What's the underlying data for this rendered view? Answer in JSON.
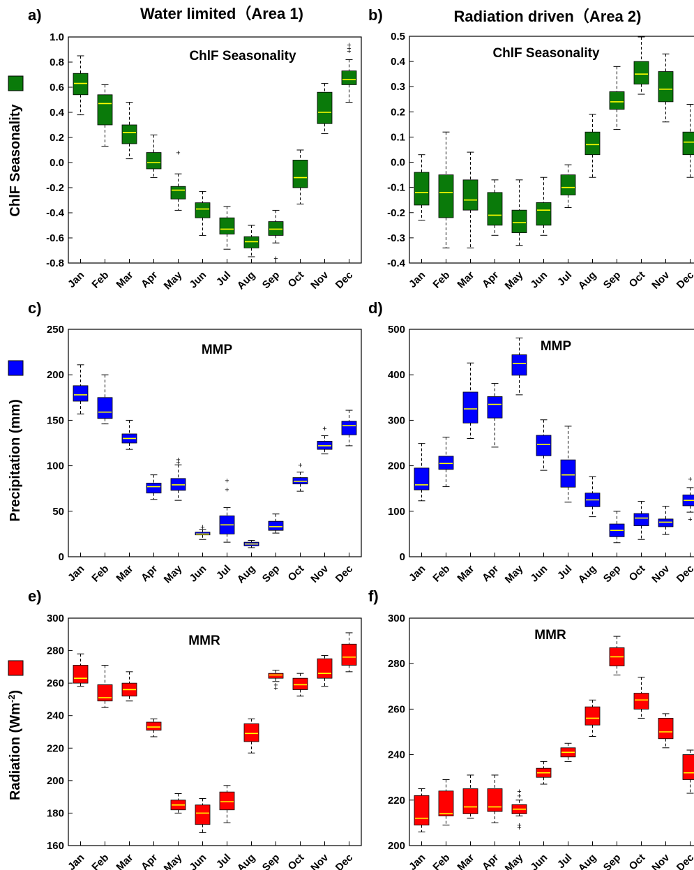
{
  "figure": {
    "col_titles": [
      "Water limited（Area 1)",
      "Radiation driven（Area 2)"
    ],
    "row_ylabels": [
      "ChlF Seasonality",
      "Precipitation (mm)",
      "Radiation (Wm-2)"
    ],
    "row_colors": [
      "#0a7a0a",
      "#0000ff",
      "#ff0000"
    ],
    "median_color": "#ffff00",
    "whisker_style": "dashed",
    "outlier_marker": "+"
  },
  "chart_data": [
    {
      "panel": "a)",
      "type": "box",
      "title": "ChlF Seasonality",
      "ylabel": "ChlF Seasonality",
      "ylim": [
        -0.8,
        1.0
      ],
      "yticks": [
        "-0.8",
        "-0.6",
        "-0.4",
        "-0.2",
        "0.0",
        "0.2",
        "0.4",
        "0.6",
        "0.8",
        "1.0"
      ],
      "categories": [
        "Jan",
        "Feb",
        "Mar",
        "Apr",
        "May",
        "Jun",
        "Jul",
        "Aug",
        "Sep",
        "Oct",
        "Nov",
        "Dec"
      ],
      "boxes": [
        {
          "whislo": 0.38,
          "q1": 0.54,
          "med": 0.63,
          "q3": 0.71,
          "whishi": 0.85,
          "fliers": []
        },
        {
          "whislo": 0.13,
          "q1": 0.3,
          "med": 0.47,
          "q3": 0.54,
          "whishi": 0.62,
          "fliers": []
        },
        {
          "whislo": 0.03,
          "q1": 0.15,
          "med": 0.24,
          "q3": 0.3,
          "whishi": 0.48,
          "fliers": []
        },
        {
          "whislo": -0.12,
          "q1": -0.05,
          "med": 0.0,
          "q3": 0.08,
          "whishi": 0.22,
          "fliers": []
        },
        {
          "whislo": -0.38,
          "q1": -0.29,
          "med": -0.22,
          "q3": -0.19,
          "whishi": -0.09,
          "fliers": [
            0.08
          ]
        },
        {
          "whislo": -0.58,
          "q1": -0.44,
          "med": -0.37,
          "q3": -0.32,
          "whishi": -0.23,
          "fliers": []
        },
        {
          "whislo": -0.69,
          "q1": -0.57,
          "med": -0.53,
          "q3": -0.44,
          "whishi": -0.35,
          "fliers": []
        },
        {
          "whislo": -0.75,
          "q1": -0.68,
          "med": -0.63,
          "q3": -0.59,
          "whishi": -0.5,
          "fliers": []
        },
        {
          "whislo": -0.64,
          "q1": -0.58,
          "med": -0.53,
          "q3": -0.47,
          "whishi": -0.38,
          "fliers": [
            -0.76
          ]
        },
        {
          "whislo": -0.33,
          "q1": -0.2,
          "med": -0.12,
          "q3": 0.02,
          "whishi": 0.1,
          "fliers": []
        },
        {
          "whislo": 0.23,
          "q1": 0.31,
          "med": 0.4,
          "q3": 0.56,
          "whishi": 0.63,
          "fliers": []
        },
        {
          "whislo": 0.48,
          "q1": 0.62,
          "med": 0.66,
          "q3": 0.73,
          "whishi": 0.82,
          "fliers": [
            0.89,
            0.91,
            0.94
          ]
        }
      ]
    },
    {
      "panel": "b)",
      "type": "box",
      "title": "ChlF Seasonality",
      "ylim": [
        -0.4,
        0.5
      ],
      "yticks": [
        "-0.4",
        "-0.3",
        "-0.2",
        "-0.1",
        "0.0",
        "0.1",
        "0.2",
        "0.3",
        "0.4",
        "0.5"
      ],
      "categories": [
        "Jan",
        "Feb",
        "Mar",
        "Apr",
        "May",
        "Jun",
        "Jul",
        "Aug",
        "Sep",
        "Oct",
        "Nov",
        "Dec"
      ],
      "boxes": [
        {
          "whislo": -0.23,
          "q1": -0.17,
          "med": -0.12,
          "q3": -0.04,
          "whishi": 0.03,
          "fliers": []
        },
        {
          "whislo": -0.34,
          "q1": -0.22,
          "med": -0.12,
          "q3": -0.05,
          "whishi": 0.12,
          "fliers": []
        },
        {
          "whislo": -0.34,
          "q1": -0.19,
          "med": -0.15,
          "q3": -0.07,
          "whishi": 0.04,
          "fliers": []
        },
        {
          "whislo": -0.29,
          "q1": -0.25,
          "med": -0.21,
          "q3": -0.12,
          "whishi": -0.07,
          "fliers": []
        },
        {
          "whislo": -0.33,
          "q1": -0.28,
          "med": -0.24,
          "q3": -0.19,
          "whishi": -0.07,
          "fliers": []
        },
        {
          "whislo": -0.29,
          "q1": -0.25,
          "med": -0.19,
          "q3": -0.16,
          "whishi": -0.06,
          "fliers": []
        },
        {
          "whislo": -0.18,
          "q1": -0.13,
          "med": -0.1,
          "q3": -0.05,
          "whishi": -0.01,
          "fliers": []
        },
        {
          "whislo": -0.06,
          "q1": 0.03,
          "med": 0.07,
          "q3": 0.12,
          "whishi": 0.19,
          "fliers": []
        },
        {
          "whislo": 0.13,
          "q1": 0.21,
          "med": 0.24,
          "q3": 0.28,
          "whishi": 0.38,
          "fliers": []
        },
        {
          "whislo": 0.27,
          "q1": 0.31,
          "med": 0.35,
          "q3": 0.4,
          "whishi": 0.5,
          "fliers": []
        },
        {
          "whislo": 0.16,
          "q1": 0.24,
          "med": 0.29,
          "q3": 0.36,
          "whishi": 0.43,
          "fliers": []
        },
        {
          "whislo": -0.06,
          "q1": 0.03,
          "med": 0.08,
          "q3": 0.12,
          "whishi": 0.23,
          "fliers": []
        }
      ]
    },
    {
      "panel": "c)",
      "type": "box",
      "title": "MMP",
      "ylabel": "Precipitation (mm)",
      "ylim": [
        0,
        250
      ],
      "yticks": [
        "0",
        "50",
        "100",
        "150",
        "200",
        "250"
      ],
      "categories": [
        "Jan",
        "Feb",
        "Mar",
        "Apr",
        "May",
        "Jun",
        "Jul",
        "Aug",
        "Sep",
        "Oct",
        "Nov",
        "Dec"
      ],
      "boxes": [
        {
          "whislo": 157,
          "q1": 171,
          "med": 178,
          "q3": 188,
          "whishi": 211,
          "fliers": []
        },
        {
          "whislo": 146,
          "q1": 152,
          "med": 159,
          "q3": 175,
          "whishi": 200,
          "fliers": []
        },
        {
          "whislo": 118,
          "q1": 125,
          "med": 130,
          "q3": 135,
          "whishi": 150,
          "fliers": []
        },
        {
          "whislo": 63,
          "q1": 70,
          "med": 77,
          "q3": 81,
          "whishi": 90,
          "fliers": []
        },
        {
          "whislo": 62,
          "q1": 73,
          "med": 79,
          "q3": 86,
          "whishi": 101,
          "fliers": [
            104,
            107
          ]
        },
        {
          "whislo": 19,
          "q1": 24,
          "med": 25,
          "q3": 27,
          "whishi": 30,
          "fliers": [
            33
          ]
        },
        {
          "whislo": 16,
          "q1": 25,
          "med": 35,
          "q3": 45,
          "whishi": 54,
          "fliers": [
            74,
            84
          ]
        },
        {
          "whislo": 10,
          "q1": 12,
          "med": 14,
          "q3": 16,
          "whishi": 18,
          "fliers": []
        },
        {
          "whislo": 26,
          "q1": 29,
          "med": 33,
          "q3": 39,
          "whishi": 47,
          "fliers": []
        },
        {
          "whislo": 72,
          "q1": 80,
          "med": 83,
          "q3": 87,
          "whishi": 93,
          "fliers": [
            101
          ]
        },
        {
          "whislo": 113,
          "q1": 118,
          "med": 122,
          "q3": 127,
          "whishi": 133,
          "fliers": [
            141
          ]
        },
        {
          "whislo": 122,
          "q1": 134,
          "med": 144,
          "q3": 149,
          "whishi": 161,
          "fliers": []
        }
      ]
    },
    {
      "panel": "d)",
      "type": "box",
      "title": "MMP",
      "ylim": [
        0,
        500
      ],
      "yticks": [
        "0",
        "100",
        "200",
        "300",
        "400",
        "500"
      ],
      "categories": [
        "Jan",
        "Feb",
        "Mar",
        "Apr",
        "May",
        "Jun",
        "Jul",
        "Aug",
        "Sep",
        "Oct",
        "Nov",
        "Dec"
      ],
      "boxes": [
        {
          "whislo": 123,
          "q1": 147,
          "med": 158,
          "q3": 195,
          "whishi": 249,
          "fliers": []
        },
        {
          "whislo": 154,
          "q1": 192,
          "med": 205,
          "q3": 221,
          "whishi": 263,
          "fliers": []
        },
        {
          "whislo": 260,
          "q1": 294,
          "med": 325,
          "q3": 362,
          "whishi": 426,
          "fliers": []
        },
        {
          "whislo": 241,
          "q1": 305,
          "med": 335,
          "q3": 352,
          "whishi": 381,
          "fliers": []
        },
        {
          "whislo": 356,
          "q1": 399,
          "med": 425,
          "q3": 444,
          "whishi": 481,
          "fliers": []
        },
        {
          "whislo": 190,
          "q1": 222,
          "med": 247,
          "q3": 267,
          "whishi": 301,
          "fliers": []
        },
        {
          "whislo": 120,
          "q1": 153,
          "med": 180,
          "q3": 213,
          "whishi": 287,
          "fliers": []
        },
        {
          "whislo": 88,
          "q1": 110,
          "med": 125,
          "q3": 140,
          "whishi": 176,
          "fliers": []
        },
        {
          "whislo": 31,
          "q1": 44,
          "med": 58,
          "q3": 72,
          "whishi": 100,
          "fliers": []
        },
        {
          "whislo": 38,
          "q1": 68,
          "med": 85,
          "q3": 95,
          "whishi": 122,
          "fliers": []
        },
        {
          "whislo": 49,
          "q1": 66,
          "med": 76,
          "q3": 83,
          "whishi": 111,
          "fliers": []
        },
        {
          "whislo": 98,
          "q1": 112,
          "med": 124,
          "q3": 136,
          "whishi": 152,
          "fliers": [
            83,
            171
          ]
        }
      ]
    },
    {
      "panel": "e)",
      "type": "box",
      "title": "MMR",
      "ylabel": "Radiation (Wm-2)",
      "ylim": [
        160,
        300
      ],
      "yticks": [
        "160",
        "180",
        "200",
        "220",
        "240",
        "260",
        "280",
        "300"
      ],
      "categories": [
        "Jan",
        "Feb",
        "Mar",
        "Apr",
        "May",
        "Jun",
        "Jul",
        "Aug",
        "Sep",
        "Oct",
        "Nov",
        "Dec"
      ],
      "boxes": [
        {
          "whislo": 258,
          "q1": 260,
          "med": 263,
          "q3": 271,
          "whishi": 278,
          "fliers": []
        },
        {
          "whislo": 245,
          "q1": 249,
          "med": 251,
          "q3": 259,
          "whishi": 271,
          "fliers": []
        },
        {
          "whislo": 249,
          "q1": 252,
          "med": 256,
          "q3": 260,
          "whishi": 267,
          "fliers": []
        },
        {
          "whislo": 227,
          "q1": 231,
          "med": 233,
          "q3": 236,
          "whishi": 238,
          "fliers": []
        },
        {
          "whislo": 180,
          "q1": 182,
          "med": 185,
          "q3": 188,
          "whishi": 192,
          "fliers": []
        },
        {
          "whislo": 168,
          "q1": 173,
          "med": 180,
          "q3": 185,
          "whishi": 189,
          "fliers": []
        },
        {
          "whislo": 174,
          "q1": 182,
          "med": 187,
          "q3": 193,
          "whishi": 197,
          "fliers": []
        },
        {
          "whislo": 217,
          "q1": 224,
          "med": 229,
          "q3": 235,
          "whishi": 238,
          "fliers": []
        },
        {
          "whislo": 261,
          "q1": 263,
          "med": 265,
          "q3": 266,
          "whishi": 268,
          "fliers": [
            257,
            259
          ]
        },
        {
          "whislo": 252,
          "q1": 256,
          "med": 259,
          "q3": 263,
          "whishi": 266,
          "fliers": []
        },
        {
          "whislo": 258,
          "q1": 263,
          "med": 266,
          "q3": 275,
          "whishi": 277,
          "fliers": []
        },
        {
          "whislo": 267,
          "q1": 271,
          "med": 276,
          "q3": 284,
          "whishi": 291,
          "fliers": []
        }
      ]
    },
    {
      "panel": "f)",
      "type": "box",
      "title": "MMR",
      "ylim": [
        200,
        300
      ],
      "yticks": [
        "200",
        "220",
        "240",
        "260",
        "280",
        "300"
      ],
      "categories": [
        "Jan",
        "Feb",
        "Mar",
        "Apr",
        "May",
        "Jun",
        "Jul",
        "Aug",
        "Sep",
        "Oct",
        "Nov",
        "Dec"
      ],
      "boxes": [
        {
          "whislo": 206,
          "q1": 209,
          "med": 212,
          "q3": 222,
          "whishi": 225,
          "fliers": []
        },
        {
          "whislo": 209,
          "q1": 213,
          "med": 214,
          "q3": 224,
          "whishi": 229,
          "fliers": []
        },
        {
          "whislo": 212,
          "q1": 214,
          "med": 217,
          "q3": 225,
          "whishi": 231,
          "fliers": []
        },
        {
          "whislo": 210,
          "q1": 215,
          "med": 217,
          "q3": 225,
          "whishi": 231,
          "fliers": []
        },
        {
          "whislo": 213,
          "q1": 214,
          "med": 216,
          "q3": 218,
          "whishi": 220,
          "fliers": [
            208,
            209,
            222,
            224
          ]
        },
        {
          "whislo": 227,
          "q1": 230,
          "med": 232,
          "q3": 234,
          "whishi": 237,
          "fliers": []
        },
        {
          "whislo": 237,
          "q1": 239,
          "med": 241,
          "q3": 243,
          "whishi": 245,
          "fliers": []
        },
        {
          "whislo": 248,
          "q1": 253,
          "med": 256,
          "q3": 261,
          "whishi": 264,
          "fliers": []
        },
        {
          "whislo": 275,
          "q1": 279,
          "med": 283,
          "q3": 287,
          "whishi": 292,
          "fliers": []
        },
        {
          "whislo": 256,
          "q1": 260,
          "med": 264,
          "q3": 267,
          "whishi": 274,
          "fliers": []
        },
        {
          "whislo": 243,
          "q1": 247,
          "med": 250,
          "q3": 256,
          "whishi": 258,
          "fliers": []
        },
        {
          "whislo": 223,
          "q1": 229,
          "med": 232,
          "q3": 240,
          "whishi": 242,
          "fliers": []
        }
      ]
    }
  ]
}
